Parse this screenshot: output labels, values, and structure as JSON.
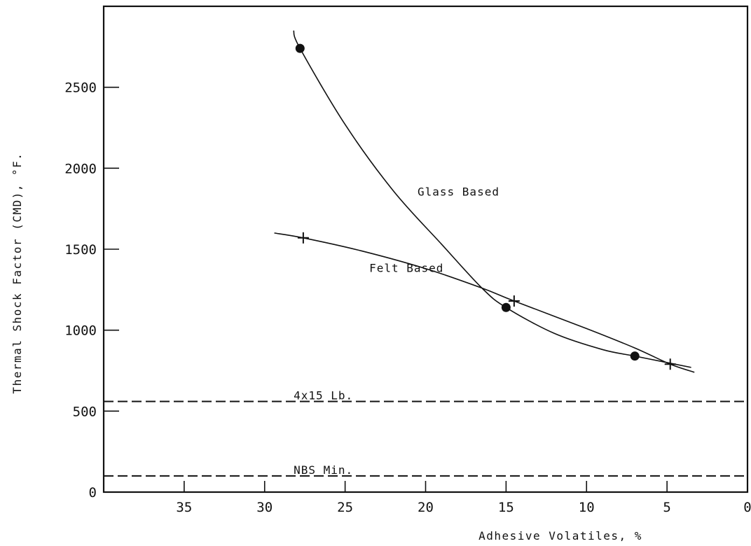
{
  "chart_data": {
    "type": "line",
    "xlabel": "Adhesive Volatiles, %",
    "ylabel": "Thermal Shock Factor (CMD), °F.",
    "xlim": [
      40,
      0
    ],
    "ylim": [
      0,
      3000
    ],
    "x_ticks": [
      35,
      30,
      25,
      20,
      15,
      10,
      5,
      0
    ],
    "y_ticks": [
      0,
      500,
      1000,
      1500,
      2000,
      2500
    ],
    "grid": false,
    "series": [
      {
        "name": "Glass Based",
        "marker": "circle",
        "points": [
          {
            "x": 27.8,
            "y": 2740
          },
          {
            "x": 15.0,
            "y": 1140
          },
          {
            "x": 7.0,
            "y": 840
          }
        ],
        "curve": [
          {
            "x": 28.2,
            "y": 2850
          },
          {
            "x": 27.8,
            "y": 2740
          },
          {
            "x": 25.0,
            "y": 2270
          },
          {
            "x": 22.0,
            "y": 1860
          },
          {
            "x": 19.0,
            "y": 1530
          },
          {
            "x": 16.5,
            "y": 1260
          },
          {
            "x": 15.0,
            "y": 1140
          },
          {
            "x": 12.0,
            "y": 980
          },
          {
            "x": 9.0,
            "y": 880
          },
          {
            "x": 7.0,
            "y": 840
          },
          {
            "x": 5.0,
            "y": 800
          },
          {
            "x": 3.5,
            "y": 770
          }
        ]
      },
      {
        "name": "Felt Based",
        "marker": "plus",
        "points": [
          {
            "x": 27.6,
            "y": 1570
          },
          {
            "x": 14.5,
            "y": 1180
          },
          {
            "x": 4.8,
            "y": 790
          }
        ],
        "curve": [
          {
            "x": 29.4,
            "y": 1600
          },
          {
            "x": 27.6,
            "y": 1570
          },
          {
            "x": 24.0,
            "y": 1490
          },
          {
            "x": 20.0,
            "y": 1380
          },
          {
            "x": 16.5,
            "y": 1260
          },
          {
            "x": 14.5,
            "y": 1180
          },
          {
            "x": 10.0,
            "y": 1010
          },
          {
            "x": 7.0,
            "y": 890
          },
          {
            "x": 4.8,
            "y": 790
          },
          {
            "x": 3.3,
            "y": 740
          }
        ]
      }
    ],
    "reference_lines": [
      {
        "label": "4x15 Lb.",
        "y": 560
      },
      {
        "label": "NBS Min.",
        "y": 100
      }
    ],
    "annotations": [
      {
        "text": "Glass Based",
        "x": 20.5,
        "y": 1830
      },
      {
        "text": "Felt Based",
        "x": 23.5,
        "y": 1360
      }
    ]
  }
}
